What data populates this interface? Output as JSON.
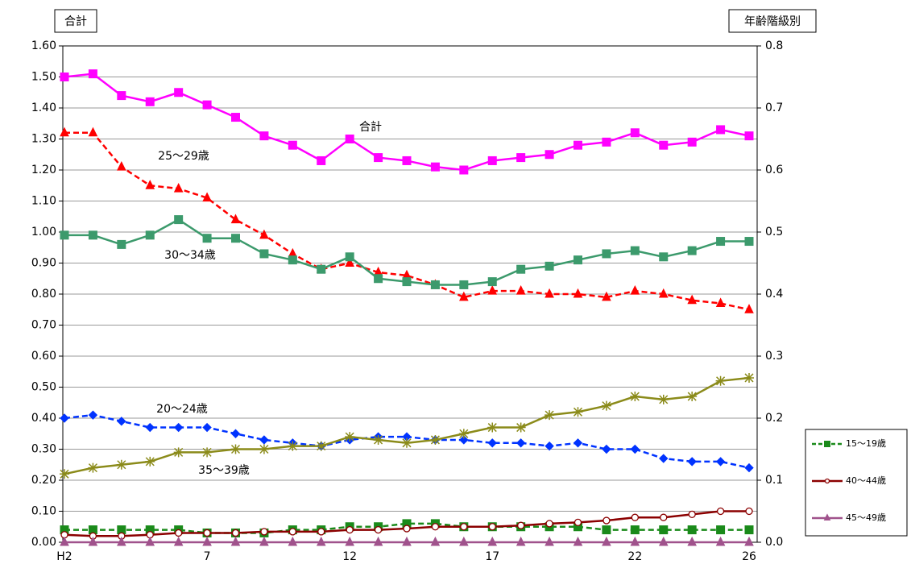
{
  "chart_data": {
    "type": "line",
    "y_title": "合計",
    "y2_title": "年齢階級別",
    "categories": [
      "H2",
      null,
      null,
      null,
      null,
      "7",
      null,
      null,
      null,
      null,
      "12",
      null,
      null,
      null,
      null,
      "17",
      null,
      null,
      null,
      null,
      "22",
      null,
      null,
      null,
      "26"
    ],
    "ylim": [
      0,
      1.6
    ],
    "yticks": [
      {
        "value": 0,
        "label": "0.00"
      },
      {
        "value": 0.1,
        "label": "0.10"
      },
      {
        "value": 0.2,
        "label": "0.20"
      },
      {
        "value": 0.3,
        "label": "0.30"
      },
      {
        "value": 0.4,
        "label": "0.40"
      },
      {
        "value": 0.5,
        "label": "0.50"
      },
      {
        "value": 0.6,
        "label": "0.60"
      },
      {
        "value": 0.7,
        "label": "0.70"
      },
      {
        "value": 0.8,
        "label": "0.80"
      },
      {
        "value": 0.9,
        "label": "0.90"
      },
      {
        "value": 1.0,
        "label": "1.00"
      },
      {
        "value": 1.1,
        "label": "1.10"
      },
      {
        "value": 1.2,
        "label": "1.20"
      },
      {
        "value": 1.3,
        "label": "1.30"
      },
      {
        "value": 1.4,
        "label": "1.40"
      },
      {
        "value": 1.5,
        "label": "1.50"
      },
      {
        "value": 1.6,
        "label": "1.60"
      }
    ],
    "y2lim": [
      0,
      0.8
    ],
    "y2ticks": [
      {
        "value": 0,
        "label": "0.0"
      },
      0.1,
      0.2,
      0.3,
      0.4,
      0.5,
      0.6,
      0.7,
      0.8
    ],
    "grid": true,
    "series": [
      {
        "name": "合計",
        "color": "#ff00ff",
        "marker": "square",
        "dash": false,
        "legend": false,
        "values": [
          1.5,
          1.51,
          1.44,
          1.42,
          1.45,
          1.41,
          1.37,
          1.31,
          1.28,
          1.23,
          1.3,
          1.24,
          1.23,
          1.21,
          1.2,
          1.23,
          1.24,
          1.25,
          1.28,
          1.29,
          1.32,
          1.28,
          1.29,
          1.33,
          1.31
        ]
      },
      {
        "name": "25〜29歳",
        "color": "#ff0000",
        "marker": "triangle",
        "dash": true,
        "legend": false,
        "axis": "y2",
        "values": [
          0.66,
          0.66,
          0.605,
          0.575,
          0.57,
          0.555,
          0.52,
          0.495,
          0.465,
          0.44,
          0.45,
          0.435,
          0.43,
          0.415,
          0.395,
          0.405,
          0.405,
          0.4,
          0.4,
          0.395,
          0.405,
          0.4,
          0.39,
          0.385,
          0.375
        ]
      },
      {
        "name": "30〜34歳",
        "color": "#3c9a6c",
        "marker": "square",
        "dash": false,
        "legend": false,
        "axis": "y2",
        "values": [
          0.495,
          0.495,
          0.48,
          0.495,
          0.52,
          0.49,
          0.49,
          0.465,
          0.455,
          0.44,
          0.46,
          0.425,
          0.42,
          0.415,
          0.415,
          0.42,
          0.44,
          0.445,
          0.455,
          0.465,
          0.47,
          0.46,
          0.47,
          0.485,
          0.485
        ]
      },
      {
        "name": "20〜24歳",
        "color": "#0033ff",
        "marker": "diamond",
        "dash": true,
        "legend": false,
        "axis": "y2",
        "values": [
          0.2,
          0.205,
          0.195,
          0.185,
          0.185,
          0.185,
          0.175,
          0.165,
          0.16,
          0.155,
          0.165,
          0.17,
          0.17,
          0.165,
          0.165,
          0.16,
          0.16,
          0.155,
          0.16,
          0.15,
          0.15,
          0.135,
          0.13,
          0.13,
          0.12
        ]
      },
      {
        "name": "35〜39歳",
        "color": "#8b8b1a",
        "marker": "asterisk",
        "dash": false,
        "legend": false,
        "axis": "y2",
        "values": [
          0.11,
          0.12,
          0.125,
          0.13,
          0.145,
          0.145,
          0.15,
          0.15,
          0.155,
          0.155,
          0.17,
          0.165,
          0.16,
          0.165,
          0.175,
          0.185,
          0.185,
          0.205,
          0.21,
          0.22,
          0.235,
          0.23,
          0.235,
          0.26,
          0.265
        ]
      },
      {
        "name": "15〜19歳",
        "color": "#1a8a1a",
        "marker": "square",
        "dash": true,
        "legend": true,
        "axis": "y2",
        "values": [
          0.02,
          0.02,
          0.02,
          0.02,
          0.02,
          0.015,
          0.015,
          0.015,
          0.02,
          0.02,
          0.025,
          0.025,
          0.03,
          0.03,
          0.025,
          0.025,
          0.025,
          0.025,
          0.025,
          0.02,
          0.02,
          0.02,
          0.02,
          0.02,
          0.02
        ]
      },
      {
        "name": "40〜44歳",
        "color": "#8b0000",
        "marker": "circle",
        "dash": false,
        "legend": true,
        "axis": "y2",
        "values": [
          0.012,
          0.01,
          0.01,
          0.012,
          0.015,
          0.015,
          0.015,
          0.017,
          0.017,
          0.017,
          0.02,
          0.02,
          0.022,
          0.025,
          0.025,
          0.025,
          0.027,
          0.03,
          0.032,
          0.035,
          0.04,
          0.04,
          0.045,
          0.05,
          0.05
        ]
      },
      {
        "name": "45〜49歳",
        "color": "#a0528c",
        "marker": "triangle",
        "dash": false,
        "legend": true,
        "axis": "y2",
        "values": [
          0,
          0,
          0,
          0,
          0,
          0,
          0,
          0,
          0,
          0,
          0,
          0,
          0,
          0,
          0,
          0,
          0,
          0,
          0,
          0,
          0,
          0,
          0,
          0,
          0
        ]
      }
    ]
  }
}
